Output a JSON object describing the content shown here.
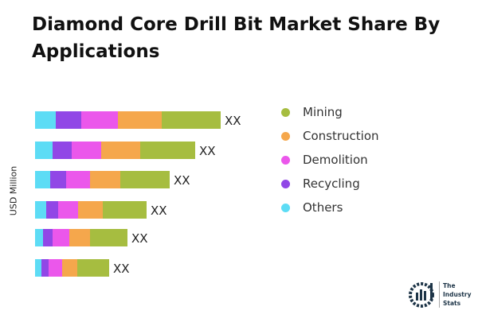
{
  "chart_data": {
    "type": "bar",
    "orientation": "horizontal",
    "stacked": true,
    "title": "Diamond Core Drill Bit Market Share By Applications",
    "ylabel": "USD Million",
    "grid": false,
    "legend_position": "right",
    "series": [
      {
        "name": "Others",
        "color": "#5ddcf5",
        "values": [
          26,
          22,
          19,
          14,
          10,
          8
        ]
      },
      {
        "name": "Recycling",
        "color": "#9147e6",
        "values": [
          32,
          24,
          20,
          15,
          12,
          9
        ]
      },
      {
        "name": "Demolition",
        "color": "#eb57eb",
        "values": [
          46,
          37,
          30,
          25,
          21,
          17
        ]
      },
      {
        "name": "Construction",
        "color": "#f5a74c",
        "values": [
          55,
          49,
          38,
          31,
          26,
          19
        ]
      },
      {
        "name": "Mining",
        "color": "#a6bd40",
        "values": [
          74,
          69,
          62,
          55,
          47,
          40
        ]
      }
    ],
    "data_labels": [
      "XX",
      "XX",
      "XX",
      "XX",
      "XX",
      "XX"
    ]
  },
  "legend": [
    "Mining",
    "Construction",
    "Demolition",
    "Recycling",
    "Others"
  ],
  "legend_colors": [
    "#a6bd40",
    "#f5a74c",
    "#eb57eb",
    "#9147e6",
    "#5ddcf5"
  ],
  "logo": {
    "text": [
      "The",
      "Industry",
      "Stats"
    ]
  }
}
